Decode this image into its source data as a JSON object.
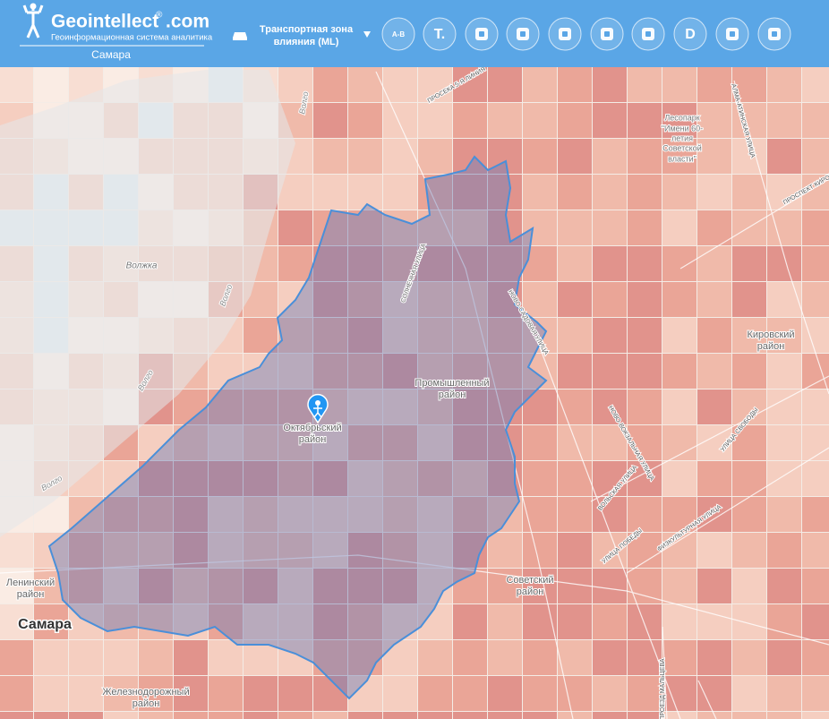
{
  "header": {
    "logo": "Geointellect",
    "logo_suffix": ".com",
    "registered": "®",
    "tagline": "Геоинформационная система аналитика",
    "city": "Самара",
    "layer": [
      "Транспортная зона",
      "влияния (ML)"
    ],
    "tool_labels": [
      "A-B",
      "T.",
      "D"
    ]
  },
  "map": {
    "labels": [
      "Волжка",
      "Волго",
      "Волго",
      "Волго",
      "Волго",
      "СОЛНЕЧНАЯ УЛИЦА",
      "НОВО-САДОВАЯ УЛИЦА",
      "Промышленный",
      "район",
      "Октябрьский",
      "район",
      "Ленинский",
      "район",
      "Самара",
      "Железнодорожный",
      "район",
      "Советский",
      "район",
      "Кировский",
      "район",
      "Лесопарк",
      "\"Имени 60-",
      "летия",
      "Советской",
      "власти\"",
      "УЛИЦА СВОБОДЫ",
      "НОВО-ВОКЗАЛЬНАЯ УЛИЦА",
      "ВОЛЬСКАЯ УЛИЦА",
      "ФИЗКУЛЬТУРНАЯ УЛИЦА",
      "УЛИЦА ПОБЕДЫ",
      "АЛМА-АТИНСКАЯ УЛИЦА",
      "ПРОСПЕКТ КИРОВА",
      "ПРОСЕКА 5-Я ЛИНИЯ",
      "ПРОЕЗД МАЛЬЦЕВА"
    ]
  }
}
